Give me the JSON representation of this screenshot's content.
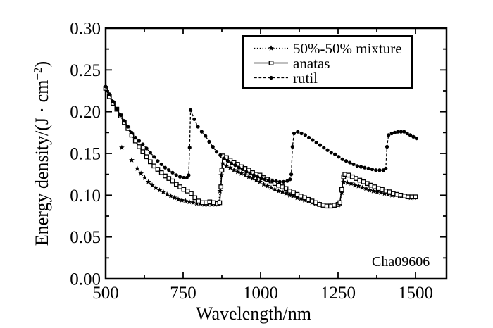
{
  "figure": {
    "background": "#ffffff",
    "ink": "#000000",
    "annotation": "Cha09606"
  },
  "chart_data": {
    "type": "line",
    "title": "",
    "xlabel": "Wavelength/nm",
    "ylabel": "Energy density/(J · cm⁻²)",
    "ylabel_parts": [
      "Energy density/(J · cm",
      "−2",
      ")"
    ],
    "xlim": [
      500,
      1600
    ],
    "ylim": [
      0.0,
      0.3
    ],
    "grid": false,
    "x_tick_values": [
      500,
      750,
      1000,
      1250,
      1500
    ],
    "x_tick_labels": [
      "500",
      "750",
      "1000",
      "1250",
      "1500"
    ],
    "x_minor_ticks": [
      625,
      875,
      1125,
      1375
    ],
    "y_tick_values": [
      0.0,
      0.05,
      0.1,
      0.15,
      0.2,
      0.25,
      0.3
    ],
    "y_tick_labels": [
      "0.00",
      "0.05",
      "0.10",
      "0.15",
      "0.20",
      "0.25",
      "0.30"
    ],
    "y_minor_ticks": [
      0.025,
      0.075,
      0.125,
      0.175,
      0.225,
      0.275
    ],
    "legend": {
      "position": "top-right",
      "items": [
        {
          "label": "50%-50% mixture",
          "series": "mixture"
        },
        {
          "label": "anatas",
          "series": "anatas"
        },
        {
          "label": "rutil",
          "series": "rutil"
        }
      ]
    },
    "series": [
      {
        "id": "mixture",
        "name": "50%-50% mixture",
        "marker": "star",
        "line": "dotted",
        "line_start_index": 2,
        "points": [
          [
            552,
            0.157
          ],
          [
            584,
            0.142
          ],
          [
            602,
            0.132
          ],
          [
            614,
            0.126
          ],
          [
            626,
            0.121
          ],
          [
            638,
            0.116
          ],
          [
            650,
            0.112
          ],
          [
            662,
            0.109
          ],
          [
            674,
            0.106
          ],
          [
            686,
            0.104
          ],
          [
            698,
            0.101
          ],
          [
            710,
            0.099
          ],
          [
            722,
            0.097
          ],
          [
            734,
            0.095
          ],
          [
            746,
            0.094
          ],
          [
            758,
            0.093
          ],
          [
            770,
            0.092
          ],
          [
            782,
            0.091
          ],
          [
            794,
            0.09
          ],
          [
            806,
            0.09
          ],
          [
            818,
            0.089
          ],
          [
            830,
            0.089
          ],
          [
            842,
            0.089
          ],
          [
            854,
            0.089
          ],
          [
            864,
            0.09
          ],
          [
            869,
            0.105
          ],
          [
            873,
            0.124
          ],
          [
            878,
            0.138
          ],
          [
            890,
            0.135
          ],
          [
            902,
            0.133
          ],
          [
            914,
            0.13
          ],
          [
            926,
            0.128
          ],
          [
            938,
            0.126
          ],
          [
            950,
            0.124
          ],
          [
            962,
            0.122
          ],
          [
            974,
            0.12
          ],
          [
            986,
            0.118
          ],
          [
            998,
            0.116
          ],
          [
            1010,
            0.113
          ],
          [
            1022,
            0.111
          ],
          [
            1034,
            0.109
          ],
          [
            1046,
            0.107
          ],
          [
            1058,
            0.105
          ],
          [
            1070,
            0.104
          ],
          [
            1082,
            0.102
          ],
          [
            1094,
            0.1
          ],
          [
            1106,
            0.099
          ],
          [
            1118,
            0.097
          ],
          [
            1130,
            0.096
          ],
          [
            1142,
            0.094
          ],
          [
            1154,
            0.093
          ],
          [
            1166,
            0.091
          ],
          [
            1178,
            0.09
          ],
          [
            1190,
            0.089
          ],
          [
            1202,
            0.088
          ],
          [
            1214,
            0.087
          ],
          [
            1226,
            0.087
          ],
          [
            1238,
            0.087
          ],
          [
            1250,
            0.088
          ],
          [
            1256,
            0.09
          ],
          [
            1262,
            0.103
          ],
          [
            1268,
            0.116
          ],
          [
            1280,
            0.115
          ],
          [
            1292,
            0.114
          ],
          [
            1304,
            0.112
          ],
          [
            1316,
            0.111
          ],
          [
            1328,
            0.109
          ],
          [
            1340,
            0.108
          ],
          [
            1352,
            0.106
          ],
          [
            1364,
            0.105
          ],
          [
            1376,
            0.104
          ],
          [
            1388,
            0.103
          ],
          [
            1400,
            0.102
          ],
          [
            1412,
            0.101
          ],
          [
            1424,
            0.1
          ],
          [
            1436,
            0.1
          ],
          [
            1448,
            0.099
          ],
          [
            1460,
            0.099
          ],
          [
            1472,
            0.098
          ],
          [
            1484,
            0.097
          ],
          [
            1496,
            0.097
          ]
        ]
      },
      {
        "id": "anatas",
        "name": "anatas",
        "marker": "open-square",
        "line": "solid",
        "points": [
          [
            500,
            0.228
          ],
          [
            512,
            0.218
          ],
          [
            524,
            0.21
          ],
          [
            536,
            0.203
          ],
          [
            548,
            0.195
          ],
          [
            560,
            0.187
          ],
          [
            572,
            0.18
          ],
          [
            584,
            0.172
          ],
          [
            596,
            0.165
          ],
          [
            608,
            0.158
          ],
          [
            620,
            0.152
          ],
          [
            632,
            0.146
          ],
          [
            644,
            0.14
          ],
          [
            656,
            0.135
          ],
          [
            668,
            0.131
          ],
          [
            680,
            0.127
          ],
          [
            692,
            0.123
          ],
          [
            704,
            0.12
          ],
          [
            716,
            0.117
          ],
          [
            728,
            0.113
          ],
          [
            740,
            0.11
          ],
          [
            752,
            0.107
          ],
          [
            764,
            0.105
          ],
          [
            776,
            0.102
          ],
          [
            788,
            0.097
          ],
          [
            800,
            0.093
          ],
          [
            812,
            0.091
          ],
          [
            824,
            0.091
          ],
          [
            836,
            0.092
          ],
          [
            848,
            0.091
          ],
          [
            860,
            0.09
          ],
          [
            868,
            0.091
          ],
          [
            872,
            0.11
          ],
          [
            875,
            0.13
          ],
          [
            878,
            0.147
          ],
          [
            890,
            0.145
          ],
          [
            902,
            0.142
          ],
          [
            914,
            0.139
          ],
          [
            926,
            0.137
          ],
          [
            938,
            0.134
          ],
          [
            950,
            0.132
          ],
          [
            962,
            0.13
          ],
          [
            974,
            0.127
          ],
          [
            986,
            0.125
          ],
          [
            998,
            0.124
          ],
          [
            1010,
            0.121
          ],
          [
            1022,
            0.119
          ],
          [
            1034,
            0.117
          ],
          [
            1046,
            0.114
          ],
          [
            1058,
            0.112
          ],
          [
            1070,
            0.11
          ],
          [
            1082,
            0.108
          ],
          [
            1094,
            0.105
          ],
          [
            1106,
            0.103
          ],
          [
            1118,
            0.101
          ],
          [
            1130,
            0.099
          ],
          [
            1142,
            0.097
          ],
          [
            1154,
            0.095
          ],
          [
            1166,
            0.093
          ],
          [
            1178,
            0.091
          ],
          [
            1190,
            0.089
          ],
          [
            1202,
            0.088
          ],
          [
            1214,
            0.087
          ],
          [
            1226,
            0.087
          ],
          [
            1238,
            0.088
          ],
          [
            1250,
            0.089
          ],
          [
            1256,
            0.091
          ],
          [
            1262,
            0.107
          ],
          [
            1268,
            0.122
          ],
          [
            1272,
            0.125
          ],
          [
            1284,
            0.124
          ],
          [
            1296,
            0.122
          ],
          [
            1308,
            0.12
          ],
          [
            1320,
            0.118
          ],
          [
            1332,
            0.116
          ],
          [
            1344,
            0.114
          ],
          [
            1356,
            0.112
          ],
          [
            1368,
            0.11
          ],
          [
            1380,
            0.108
          ],
          [
            1392,
            0.107
          ],
          [
            1404,
            0.105
          ],
          [
            1416,
            0.104
          ],
          [
            1428,
            0.102
          ],
          [
            1440,
            0.101
          ],
          [
            1452,
            0.1
          ],
          [
            1464,
            0.099
          ],
          [
            1476,
            0.098
          ],
          [
            1488,
            0.098
          ],
          [
            1500,
            0.098
          ]
        ]
      },
      {
        "id": "rutil",
        "name": "rutil",
        "marker": "filled-circle",
        "line": "dashed",
        "points": [
          [
            500,
            0.23
          ],
          [
            512,
            0.221
          ],
          [
            524,
            0.212
          ],
          [
            536,
            0.203
          ],
          [
            548,
            0.196
          ],
          [
            560,
            0.189
          ],
          [
            572,
            0.182
          ],
          [
            584,
            0.175
          ],
          [
            596,
            0.169
          ],
          [
            608,
            0.165
          ],
          [
            620,
            0.161
          ],
          [
            632,
            0.156
          ],
          [
            644,
            0.151
          ],
          [
            656,
            0.146
          ],
          [
            668,
            0.141
          ],
          [
            680,
            0.137
          ],
          [
            692,
            0.133
          ],
          [
            704,
            0.13
          ],
          [
            716,
            0.127
          ],
          [
            728,
            0.124
          ],
          [
            740,
            0.122
          ],
          [
            752,
            0.121
          ],
          [
            762,
            0.121
          ],
          [
            768,
            0.124
          ],
          [
            771,
            0.157
          ],
          [
            774,
            0.202
          ],
          [
            786,
            0.191
          ],
          [
            798,
            0.182
          ],
          [
            810,
            0.176
          ],
          [
            822,
            0.171
          ],
          [
            834,
            0.164
          ],
          [
            846,
            0.158
          ],
          [
            858,
            0.152
          ],
          [
            870,
            0.148
          ],
          [
            882,
            0.144
          ],
          [
            894,
            0.141
          ],
          [
            906,
            0.138
          ],
          [
            918,
            0.136
          ],
          [
            930,
            0.133
          ],
          [
            942,
            0.131
          ],
          [
            954,
            0.128
          ],
          [
            966,
            0.126
          ],
          [
            978,
            0.124
          ],
          [
            990,
            0.122
          ],
          [
            1002,
            0.12
          ],
          [
            1014,
            0.119
          ],
          [
            1026,
            0.118
          ],
          [
            1038,
            0.117
          ],
          [
            1050,
            0.117
          ],
          [
            1062,
            0.116
          ],
          [
            1074,
            0.116
          ],
          [
            1086,
            0.117
          ],
          [
            1095,
            0.119
          ],
          [
            1099,
            0.125
          ],
          [
            1103,
            0.158
          ],
          [
            1108,
            0.174
          ],
          [
            1120,
            0.176
          ],
          [
            1132,
            0.174
          ],
          [
            1144,
            0.172
          ],
          [
            1156,
            0.169
          ],
          [
            1168,
            0.166
          ],
          [
            1180,
            0.163
          ],
          [
            1192,
            0.16
          ],
          [
            1204,
            0.157
          ],
          [
            1216,
            0.154
          ],
          [
            1228,
            0.151
          ],
          [
            1240,
            0.149
          ],
          [
            1252,
            0.146
          ],
          [
            1264,
            0.143
          ],
          [
            1276,
            0.141
          ],
          [
            1288,
            0.139
          ],
          [
            1300,
            0.137
          ],
          [
            1312,
            0.135
          ],
          [
            1324,
            0.134
          ],
          [
            1336,
            0.133
          ],
          [
            1348,
            0.132
          ],
          [
            1360,
            0.131
          ],
          [
            1372,
            0.13
          ],
          [
            1384,
            0.13
          ],
          [
            1396,
            0.13
          ],
          [
            1404,
            0.132
          ],
          [
            1408,
            0.158
          ],
          [
            1413,
            0.172
          ],
          [
            1423,
            0.174
          ],
          [
            1433,
            0.175
          ],
          [
            1443,
            0.176
          ],
          [
            1453,
            0.176
          ],
          [
            1463,
            0.176
          ],
          [
            1473,
            0.174
          ],
          [
            1483,
            0.172
          ],
          [
            1493,
            0.17
          ],
          [
            1503,
            0.168
          ]
        ]
      }
    ]
  }
}
